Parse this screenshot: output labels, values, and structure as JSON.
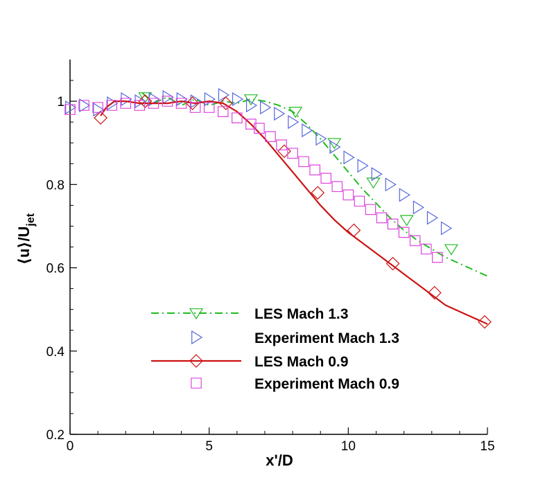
{
  "chart_data": {
    "type": "line",
    "title": "",
    "xlabel": "x'/D",
    "ylabel_main": "⟨u⟩/U",
    "ylabel_sub": "jet",
    "xlim": [
      0,
      15
    ],
    "ylim": [
      0.2,
      1.1
    ],
    "x_ticks": [
      0,
      5,
      10,
      15
    ],
    "x_tick_labels": [
      "0",
      "5",
      "10",
      "15"
    ],
    "y_ticks": [
      0.2,
      0.4,
      0.6,
      0.8,
      1.0
    ],
    "y_tick_labels": [
      "0.2",
      "0.4",
      "0.6",
      "0.8",
      "1"
    ],
    "grid": false,
    "legend_position": "lower-left",
    "series": [
      {
        "name": "LES Mach 1.3",
        "color": "#22bb22",
        "line": "dashdot",
        "marker": "triangle-down",
        "x": [
          2.6,
          3.0,
          3.5,
          4.0,
          4.5,
          5.0,
          5.5,
          6.0,
          6.5,
          7.0,
          7.5,
          8.0,
          8.5,
          9.0,
          9.5,
          10.0,
          10.5,
          11.0,
          11.5,
          12.0,
          12.5,
          13.0,
          13.5,
          14.0,
          14.5,
          15.0
        ],
        "y": [
          1.02,
          0.995,
          1.01,
          0.99,
          1.005,
          0.99,
          1.0,
          0.995,
          1.005,
          1.0,
          0.99,
          0.975,
          0.945,
          0.91,
          0.87,
          0.83,
          0.79,
          0.755,
          0.72,
          0.69,
          0.665,
          0.645,
          0.625,
          0.61,
          0.595,
          0.58
        ],
        "marker_x": [
          2.7,
          6.5,
          8.1,
          9.5,
          10.9,
          12.1,
          13.7
        ],
        "marker_y": [
          1.01,
          1.005,
          0.975,
          0.9,
          0.805,
          0.715,
          0.645
        ]
      },
      {
        "name": "Experiment Mach 1.3",
        "color": "#5566dd",
        "marker": "triangle-right",
        "x": [
          0.0,
          0.5,
          1.0,
          1.5,
          2.0,
          2.5,
          3.0,
          3.5,
          4.0,
          4.5,
          5.0,
          5.5,
          6.0,
          6.5,
          7.0,
          7.5,
          8.0,
          8.5,
          9.0,
          9.5,
          10.0,
          10.5,
          11.0,
          11.5,
          12.0,
          12.5,
          13.0,
          13.5
        ],
        "y": [
          0.985,
          0.99,
          0.98,
          0.995,
          1.005,
          1.0,
          1.005,
          1.01,
          1.005,
          1.0,
          1.005,
          1.015,
          1.005,
          0.99,
          0.985,
          0.97,
          0.95,
          0.93,
          0.91,
          0.89,
          0.865,
          0.845,
          0.825,
          0.8,
          0.775,
          0.745,
          0.72,
          0.695
        ]
      },
      {
        "name": "LES Mach 0.9",
        "color": "#cc1111",
        "line": "solid",
        "marker": "diamond",
        "x": [
          1.1,
          1.3,
          1.6,
          2.0,
          2.5,
          3.0,
          3.5,
          4.0,
          4.5,
          5.0,
          5.5,
          6.0,
          6.5,
          7.0,
          7.5,
          8.0,
          8.5,
          9.0,
          9.5,
          10.0,
          10.5,
          11.0,
          11.5,
          12.0,
          12.5,
          13.0,
          13.5,
          14.0,
          14.5,
          15.0
        ],
        "y": [
          0.965,
          0.985,
          1.0,
          1.0,
          0.995,
          0.995,
          0.995,
          1.0,
          0.995,
          1.0,
          0.995,
          0.975,
          0.945,
          0.91,
          0.87,
          0.83,
          0.79,
          0.75,
          0.715,
          0.685,
          0.66,
          0.635,
          0.61,
          0.585,
          0.56,
          0.535,
          0.51,
          0.495,
          0.48,
          0.465
        ],
        "marker_x": [
          1.1,
          2.7,
          4.4,
          5.6,
          7.7,
          8.9,
          10.2,
          11.6,
          13.1,
          14.9
        ],
        "marker_y": [
          0.96,
          1.0,
          0.995,
          0.995,
          0.88,
          0.78,
          0.69,
          0.61,
          0.54,
          0.47
        ]
      },
      {
        "name": "Experiment Mach 0.9",
        "color": "#dd44dd",
        "marker": "square",
        "x": [
          0.0,
          0.5,
          1.0,
          1.5,
          2.0,
          2.5,
          3.0,
          3.5,
          4.0,
          4.5,
          5.0,
          5.5,
          6.0,
          6.5,
          6.8,
          7.2,
          7.6,
          8.0,
          8.4,
          8.8,
          9.2,
          9.6,
          10.0,
          10.4,
          10.8,
          11.2,
          11.6,
          12.0,
          12.4,
          12.8,
          13.2
        ],
        "y": [
          0.98,
          0.99,
          0.985,
          0.99,
          0.995,
          0.99,
          0.995,
          1.0,
          0.995,
          0.985,
          0.985,
          0.975,
          0.96,
          0.945,
          0.935,
          0.915,
          0.895,
          0.875,
          0.855,
          0.835,
          0.815,
          0.795,
          0.775,
          0.76,
          0.74,
          0.72,
          0.705,
          0.685,
          0.665,
          0.645,
          0.625
        ]
      }
    ]
  }
}
